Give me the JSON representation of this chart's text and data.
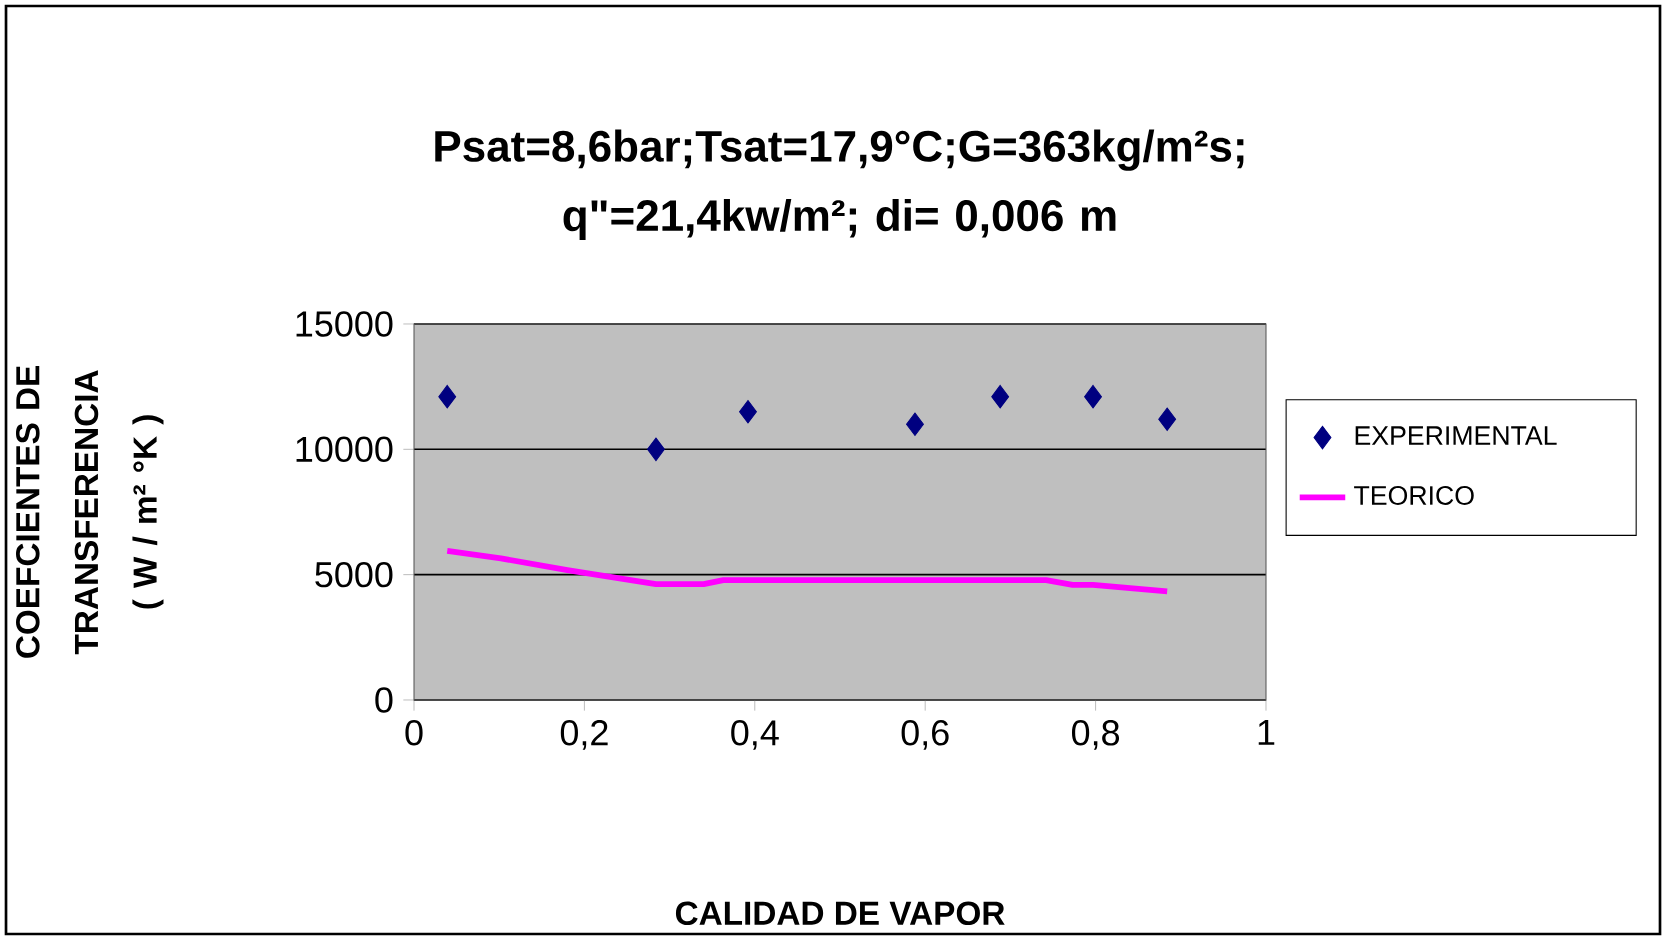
{
  "chart_data": {
    "type": "scatter",
    "title": "Psat=8,6bar;Tsat=17,9°C;G=363kg/m²s; q\"=21,4kw/m²; di= 0,006 m",
    "xlabel": "CALIDAD DE VAPOR",
    "ylabel": "COEFCIENTES DE TRANSFERENCIA ( W / m² °K )",
    "xlim": [
      0,
      1
    ],
    "ylim": [
      0,
      15000
    ],
    "xticks": [
      0,
      {
        "value": 0.2,
        "label": "0,2"
      },
      {
        "value": 0.4,
        "label": "0,4"
      },
      {
        "value": 0.6,
        "label": "0,6"
      },
      {
        "value": 0.8,
        "label": "0,8"
      },
      1
    ],
    "yticks": [
      0,
      5000,
      10000,
      15000
    ],
    "grid": "y",
    "legend": "right",
    "series": [
      {
        "name": "EXPERIMENTAL",
        "marker": "diamond",
        "color": "#000080",
        "x": [
          0.039,
          0.284,
          0.392,
          0.588,
          0.688,
          0.797,
          0.884
        ],
        "values": [
          12100,
          10000,
          11500,
          11000,
          12100,
          12100,
          11200
        ]
      },
      {
        "name": "TEORICO",
        "type": "line",
        "marker": "none",
        "line_style": "solid",
        "color": "#ff00ff",
        "x": [
          0.039,
          0.102,
          0.18,
          0.284,
          0.34,
          0.363,
          0.742,
          0.773,
          0.797,
          0.884
        ],
        "values": [
          5950,
          5650,
          5180,
          4620,
          4620,
          4780,
          4780,
          4590,
          4590,
          4330
        ]
      }
    ]
  }
}
